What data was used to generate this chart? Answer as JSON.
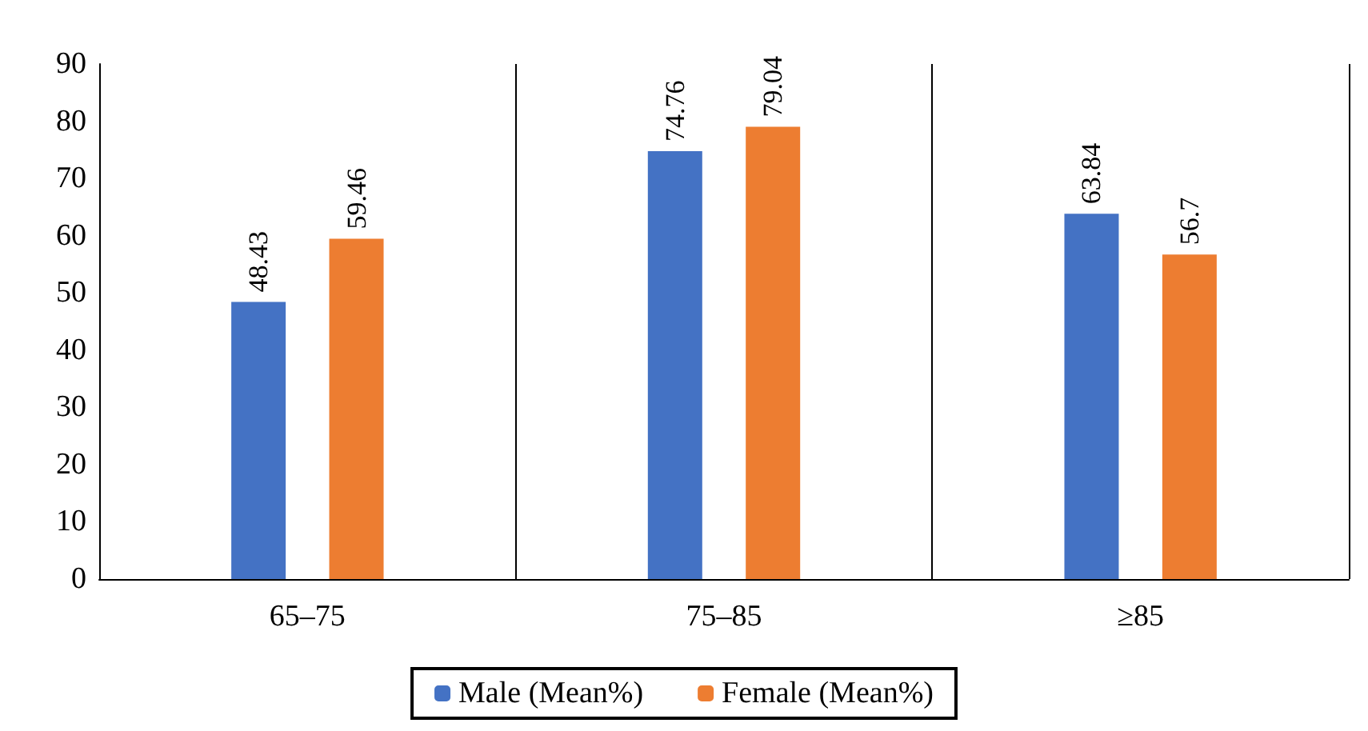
{
  "chart_data": {
    "type": "bar",
    "categories": [
      "65–75",
      "75–85",
      "≥85"
    ],
    "series": [
      {
        "name": "Male (Mean%)",
        "color": "#4472c4",
        "values": [
          48.43,
          74.76,
          63.84
        ]
      },
      {
        "name": "Female (Mean%)",
        "color": "#ed7d31",
        "values": [
          59.46,
          79.04,
          56.7
        ]
      }
    ],
    "ylim": [
      0,
      90
    ],
    "yticks": [
      0,
      10,
      20,
      30,
      40,
      50,
      60,
      70,
      80,
      90
    ],
    "grid": "x",
    "legend": "bottom",
    "data_labels": true
  }
}
